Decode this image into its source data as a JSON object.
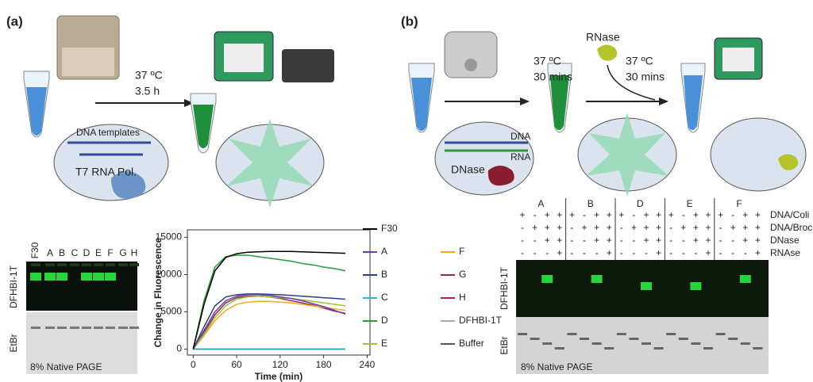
{
  "panel_a": {
    "label": "(a)",
    "temperature": "37 ºC",
    "duration": "3.5 h",
    "dna_label": "DNA templates",
    "enzyme_label": "T7 RNA Pol."
  },
  "panel_b": {
    "label": "(b)",
    "step1_temperature": "37 ºC",
    "step1_duration": "30 mins",
    "rnase_label": "RNase",
    "step2_temperature": "37 ºC",
    "step2_duration": "30 mins",
    "dna_label": "DNA",
    "rna_label": "RNA",
    "dnase_label": "DNase"
  },
  "gel_a": {
    "lanes": [
      "F30",
      "A",
      "B",
      "C",
      "D",
      "E",
      "F",
      "G",
      "H"
    ],
    "stain_top": "DFHBI-1T",
    "stain_bottom": "EtBr",
    "caption": "8% Native PAGE"
  },
  "gel_b": {
    "groups": [
      "A",
      "B",
      "D",
      "E",
      "F"
    ],
    "rows": [
      {
        "label": "DNA/Coli",
        "signs": [
          "+",
          "-",
          "+",
          "+",
          "+",
          "-",
          "+",
          "+",
          "+",
          "-",
          "+",
          "+",
          "+",
          "-",
          "+",
          "+",
          "+",
          "-",
          "+",
          "+"
        ]
      },
      {
        "label": "DNA/Broc",
        "signs": [
          "-",
          "+",
          "+",
          "+",
          "-",
          "+",
          "+",
          "+",
          "-",
          "+",
          "+",
          "+",
          "-",
          "+",
          "+",
          "+",
          "-",
          "+",
          "+",
          "+"
        ]
      },
      {
        "label": "DNase",
        "signs": [
          "-",
          "-",
          "+",
          "+",
          "-",
          "-",
          "+",
          "+",
          "-",
          "-",
          "+",
          "+",
          "-",
          "-",
          "+",
          "+",
          "-",
          "-",
          "+",
          "+"
        ]
      },
      {
        "label": "RNAse",
        "signs": [
          "-",
          "-",
          "-",
          "+",
          "-",
          "-",
          "-",
          "+",
          "-",
          "-",
          "-",
          "+",
          "-",
          "-",
          "-",
          "+",
          "-",
          "-",
          "-",
          "+"
        ]
      }
    ],
    "stain_top": "DFHBI-1T",
    "stain_bottom": "EtBr",
    "caption": "8% Native PAGE"
  },
  "chart_data": {
    "type": "line",
    "x_label": "Time (min)",
    "y_label": "Change in Fluorescence",
    "x": [
      0,
      15,
      30,
      45,
      60,
      75,
      90,
      105,
      120,
      135,
      150,
      165,
      180,
      195,
      210
    ],
    "xlim": [
      -8,
      244
    ],
    "xticks": [
      0,
      60,
      120,
      180,
      240
    ],
    "ylim": [
      -800,
      16000
    ],
    "yticks": [
      0,
      5000,
      10000,
      15000
    ],
    "series": [
      {
        "name": "F30",
        "color": "#000000",
        "values": [
          0,
          6000,
          10500,
          12300,
          12800,
          13000,
          13050,
          13100,
          13100,
          13100,
          13050,
          13000,
          12950,
          12900,
          12850
        ]
      },
      {
        "name": "A",
        "color": "#6a3fa0",
        "values": [
          0,
          2500,
          5000,
          6500,
          7100,
          7300,
          7300,
          7200,
          7000,
          6800,
          6500,
          6100,
          5700,
          5200,
          4700
        ]
      },
      {
        "name": "B",
        "color": "#2b3f8f",
        "values": [
          0,
          3000,
          5800,
          7000,
          7300,
          7400,
          7400,
          7350,
          7300,
          7200,
          7100,
          7000,
          6900,
          6800,
          6700
        ]
      },
      {
        "name": "C",
        "color": "#2bb5c8",
        "values": [
          0,
          0,
          0,
          0,
          0,
          0,
          0,
          0,
          0,
          0,
          0,
          0,
          0,
          0,
          0
        ]
      },
      {
        "name": "D",
        "color": "#2a9a3a",
        "values": [
          0,
          6500,
          11000,
          12400,
          12600,
          12600,
          12400,
          12200,
          12000,
          11800,
          11500,
          11300,
          11000,
          10800,
          10500
        ]
      },
      {
        "name": "E",
        "color": "#9ac43c",
        "values": [
          0,
          2000,
          4200,
          5800,
          6700,
          7000,
          7100,
          7000,
          6900,
          6800,
          6600,
          6400,
          6200,
          6000,
          5800
        ]
      },
      {
        "name": "F",
        "color": "#f5a623",
        "values": [
          0,
          1800,
          3800,
          5200,
          6000,
          6300,
          6400,
          6400,
          6300,
          6200,
          6000,
          5800,
          5600,
          5400,
          5200
        ]
      },
      {
        "name": "G",
        "color": "#8b2a5a",
        "values": [
          0,
          2200,
          4600,
          6200,
          6900,
          7100,
          7100,
          7000,
          6800,
          6500,
          6200,
          5900,
          5500,
          5100,
          4800
        ]
      },
      {
        "name": "H",
        "color": "#c2185b",
        "values": [
          0,
          0,
          0,
          0,
          0,
          0,
          0,
          0,
          0,
          0,
          0,
          0,
          0,
          0,
          0
        ]
      },
      {
        "name": "DFHBI-1T",
        "color": "#aaaaaa",
        "values": [
          0,
          0,
          0,
          0,
          0,
          0,
          0,
          0,
          0,
          0,
          0,
          0,
          0,
          0,
          0
        ]
      },
      {
        "name": "Buffer",
        "color": "#555555",
        "values": [
          0,
          0,
          0,
          0,
          0,
          0,
          0,
          0,
          0,
          0,
          0,
          0,
          0,
          0,
          0
        ]
      }
    ]
  }
}
